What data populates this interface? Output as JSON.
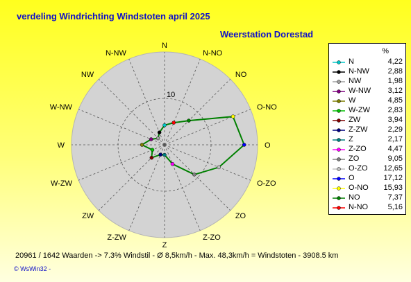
{
  "header": {
    "title": "verdeling Windrichting Windstoten  april 2025",
    "station": "Weerstation Dorestad"
  },
  "chart_data": {
    "type": "radar",
    "unit": "%",
    "rmax": 20,
    "ring_label": "10",
    "directions": [
      "N",
      "N-NO",
      "NO",
      "O-NO",
      "O",
      "O-ZO",
      "ZO",
      "Z-ZO",
      "Z",
      "Z-ZW",
      "ZW",
      "W-ZW",
      "W",
      "W-NW",
      "NW",
      "N-NW"
    ],
    "legend_order": [
      "N",
      "N-NW",
      "NW",
      "W-NW",
      "W",
      "W-ZW",
      "ZW",
      "Z-ZW",
      "Z",
      "Z-ZO",
      "ZO",
      "O-ZO",
      "O",
      "O-NO",
      "NO",
      "N-NO"
    ],
    "values": {
      "N": 4.22,
      "N-NW": 2.88,
      "NW": 1.98,
      "W-NW": 3.12,
      "W": 4.85,
      "W-ZW": 2.83,
      "ZW": 3.94,
      "Z-ZW": 2.29,
      "Z": 2.17,
      "Z-ZO": 4.47,
      "ZO": 9.05,
      "O-ZO": 12.65,
      "O": 17.12,
      "O-NO": 15.93,
      "NO": 7.37,
      "N-NO": 5.16
    },
    "value_labels": {
      "N": "4,22",
      "N-NW": "2,88",
      "NW": "1,98",
      "W-NW": "3,12",
      "W": "4,85",
      "W-ZW": "2,83",
      "ZW": "3,94",
      "Z-ZW": "2,29",
      "Z": "2,17",
      "Z-ZO": "4,47",
      "ZO": "9,05",
      "O-ZO": "12,65",
      "O": "17,12",
      "O-NO": "15,93",
      "NO": "7,37",
      "N-NO": "5,16"
    },
    "colors": {
      "N": "#00c8c8",
      "N-NW": "#000000",
      "NW": "#a0a0a0",
      "W-NW": "#800080",
      "W": "#808000",
      "W-ZW": "#00c000",
      "ZW": "#800000",
      "Z-ZW": "#000080",
      "Z": "#008080",
      "Z-ZO": "#ff00ff",
      "ZO": "#808080",
      "O-ZO": "#c0c0c0",
      "O": "#0000ff",
      "O-NO": "#ffff00",
      "NO": "#008000",
      "N-NO": "#ff0000"
    },
    "line_color": "#008000",
    "grid": true
  },
  "legend": {
    "header": "%"
  },
  "footer": {
    "stats": "20961 / 1642 Waarden  -> 7.3% Windstil   -   Ø 8,5km/h   -   Max. 48,3km/h = Windstoten    -    3908.5 km",
    "brand": "© WsWin32  -"
  }
}
